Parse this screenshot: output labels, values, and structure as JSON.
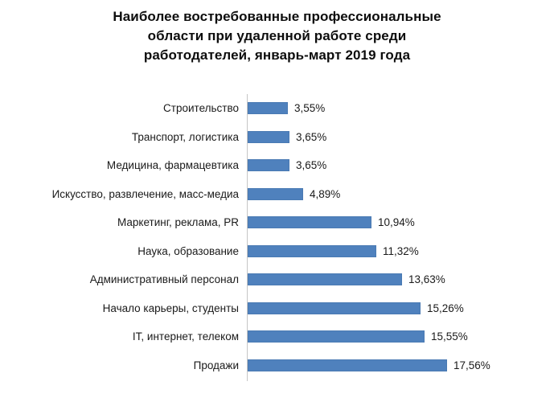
{
  "title": {
    "lines": [
      "Наиболее востребованные профессиональные",
      "области при удаленной работе среди",
      "работодателей, январь-март 2019 года"
    ]
  },
  "colors": {
    "bar_fill": "#4F81BD",
    "bar_border": "#4A7AB3",
    "axis_line": "#C6C6C6",
    "title_text": "#0D0D0D",
    "label_text": "#1A1A1A",
    "background": "#FFFFFF"
  },
  "chart_data": {
    "type": "bar",
    "orientation": "horizontal",
    "title": "Наиболее востребованные профессиональные области при удаленной работе среди работодателей, январь-март 2019 года",
    "categories": [
      "Строительство",
      "Транспорт, логистика",
      "Медицина, фармацевтика",
      "Искусство, развлечение, масс-медиа",
      "Маркетинг, реклама, PR",
      "Наука, образование",
      "Административный персонал",
      "Начало карьеры, студенты",
      "IT, интернет, телеком",
      "Продажи"
    ],
    "values": [
      3.55,
      3.65,
      3.65,
      4.89,
      10.94,
      11.32,
      13.63,
      15.26,
      15.55,
      17.56
    ],
    "value_labels": [
      "3,55%",
      "3,65%",
      "3,65%",
      "4,89%",
      "10,94%",
      "11,32%",
      "13,63%",
      "15,26%",
      "15,55%",
      "17,56%"
    ],
    "xlabel": "",
    "ylabel": "",
    "xlim": [
      0,
      20
    ],
    "grid": false,
    "legend": false,
    "data_labels": true
  }
}
